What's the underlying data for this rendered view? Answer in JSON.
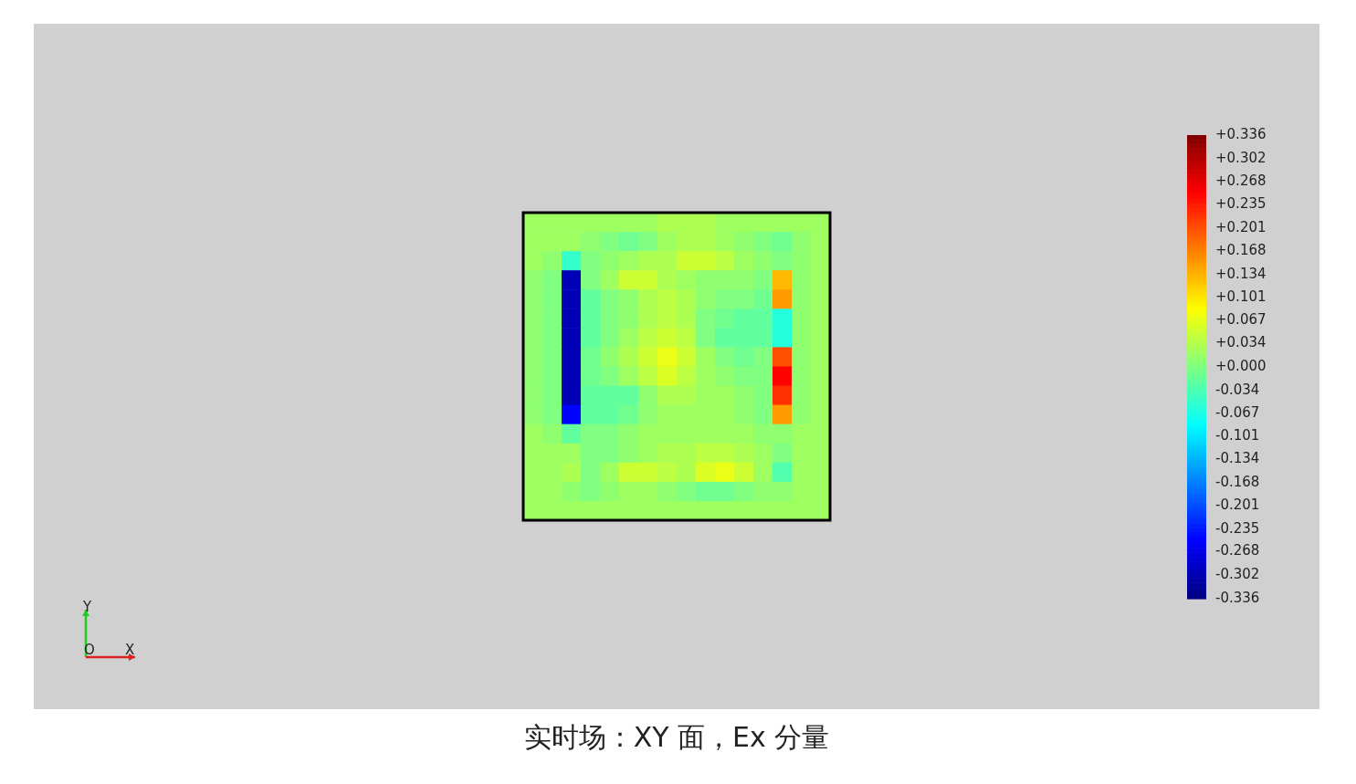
{
  "chart_data": {
    "type": "heatmap",
    "title": "实时场：XY 面，Ex 分量",
    "categories": [
      null,
      null,
      null,
      null,
      null,
      null,
      null,
      null,
      null,
      null,
      null,
      null,
      null,
      null,
      null,
      null
    ],
    "y_categories": [
      null,
      null,
      null,
      null,
      null,
      null,
      null,
      null,
      null,
      null,
      null,
      null,
      null,
      null,
      null,
      null
    ],
    "cells": [
      [
        0.02,
        0.02,
        0.02,
        0.02,
        0.02,
        0.02,
        0.02,
        0.03,
        0.03,
        0.03,
        0.02,
        0.02,
        0.02,
        0.02,
        0.02,
        0.02
      ],
      [
        0.02,
        0.02,
        0.02,
        0.01,
        0.0,
        -0.01,
        0.0,
        0.02,
        0.03,
        0.03,
        0.02,
        0.01,
        0.0,
        -0.01,
        0.01,
        0.02
      ],
      [
        0.02,
        0.01,
        -0.05,
        0.0,
        0.01,
        0.02,
        0.03,
        0.03,
        0.05,
        0.05,
        0.04,
        0.02,
        0.01,
        0.0,
        0.01,
        0.02
      ],
      [
        0.01,
        0.0,
        -0.3,
        0.0,
        0.02,
        0.05,
        0.05,
        0.03,
        0.02,
        0.01,
        0.01,
        0.01,
        0.0,
        0.13,
        0.01,
        0.02
      ],
      [
        0.01,
        0.0,
        -0.3,
        -0.02,
        0.0,
        0.01,
        0.03,
        0.04,
        0.03,
        0.01,
        0.0,
        0.0,
        -0.01,
        0.15,
        0.01,
        0.02
      ],
      [
        0.01,
        0.0,
        -0.3,
        -0.02,
        0.0,
        0.01,
        0.03,
        0.04,
        0.03,
        0.0,
        -0.01,
        -0.02,
        -0.02,
        -0.06,
        0.01,
        0.02
      ],
      [
        0.01,
        0.0,
        -0.3,
        -0.02,
        0.0,
        0.02,
        0.04,
        0.05,
        0.04,
        0.0,
        -0.02,
        -0.02,
        -0.02,
        -0.06,
        0.01,
        0.02
      ],
      [
        0.01,
        0.0,
        -0.3,
        -0.01,
        0.01,
        0.03,
        0.05,
        0.07,
        0.05,
        0.02,
        0.0,
        -0.01,
        0.0,
        0.2,
        0.01,
        0.02
      ],
      [
        0.01,
        0.0,
        -0.3,
        -0.01,
        0.0,
        0.02,
        0.04,
        0.06,
        0.04,
        0.02,
        0.01,
        0.0,
        0.0,
        0.25,
        0.01,
        0.02
      ],
      [
        0.01,
        0.0,
        -0.3,
        -0.02,
        -0.02,
        -0.02,
        0.01,
        0.03,
        0.03,
        0.02,
        0.02,
        0.01,
        0.0,
        0.22,
        0.01,
        0.02
      ],
      [
        0.01,
        0.0,
        -0.25,
        -0.02,
        -0.02,
        -0.01,
        0.01,
        0.02,
        0.02,
        0.02,
        0.02,
        0.01,
        0.0,
        0.15,
        0.01,
        0.02
      ],
      [
        0.02,
        0.01,
        -0.02,
        0.0,
        0.0,
        0.01,
        0.02,
        0.02,
        0.02,
        0.02,
        0.02,
        0.02,
        0.01,
        0.01,
        0.02,
        0.02
      ],
      [
        0.02,
        0.02,
        0.02,
        0.0,
        0.0,
        0.01,
        0.02,
        0.03,
        0.03,
        0.04,
        0.04,
        0.03,
        0.02,
        0.0,
        0.02,
        0.02
      ],
      [
        0.02,
        0.02,
        0.03,
        0.0,
        0.02,
        0.05,
        0.05,
        0.04,
        0.03,
        0.06,
        0.07,
        0.05,
        0.02,
        -0.03,
        0.02,
        0.02
      ],
      [
        0.02,
        0.02,
        0.01,
        0.0,
        0.01,
        0.02,
        0.02,
        0.01,
        0.0,
        -0.01,
        -0.01,
        0.0,
        0.01,
        0.01,
        0.02,
        0.02
      ],
      [
        0.02,
        0.02,
        0.02,
        0.02,
        0.02,
        0.02,
        0.02,
        0.02,
        0.02,
        0.02,
        0.02,
        0.02,
        0.02,
        0.02,
        0.02,
        0.02
      ]
    ],
    "clim": [
      -0.336,
      0.336
    ],
    "cticks": [
      {
        "value": 0.336,
        "label": "+0.336"
      },
      {
        "value": 0.302,
        "label": "+0.302"
      },
      {
        "value": 0.268,
        "label": "+0.268"
      },
      {
        "value": 0.235,
        "label": "+0.235"
      },
      {
        "value": 0.201,
        "label": "+0.201"
      },
      {
        "value": 0.168,
        "label": "+0.168"
      },
      {
        "value": 0.134,
        "label": "+0.134"
      },
      {
        "value": 0.101,
        "label": "+0.101"
      },
      {
        "value": 0.067,
        "label": "+0.067"
      },
      {
        "value": 0.034,
        "label": "+0.034"
      },
      {
        "value": 0,
        "label": "+0.000"
      },
      {
        "value": -0.034,
        "label": "-0.034"
      },
      {
        "value": -0.067,
        "label": "-0.067"
      },
      {
        "value": -0.101,
        "label": "-0.101"
      },
      {
        "value": -0.134,
        "label": "-0.134"
      },
      {
        "value": -0.168,
        "label": "-0.168"
      },
      {
        "value": -0.201,
        "label": "-0.201"
      },
      {
        "value": -0.235,
        "label": "-0.235"
      },
      {
        "value": -0.268,
        "label": "-0.268"
      },
      {
        "value": -0.302,
        "label": "-0.302"
      },
      {
        "value": -0.336,
        "label": "-0.336"
      }
    ],
    "annotations": [
      "Y",
      "O",
      "X"
    ]
  }
}
